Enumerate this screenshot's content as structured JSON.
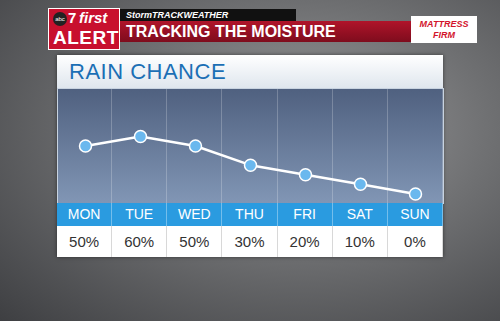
{
  "header": {
    "logo_network": "abc",
    "logo_channel": "7",
    "logo_top": "first",
    "logo_bottom": "ALERT",
    "brand": "StormTRACKWEATHER",
    "headline": "TRACKING THE MOISTURE",
    "sponsor": "MATTRESS FIRM"
  },
  "chart_data": {
    "type": "line",
    "title": "RAIN CHANCE",
    "categories": [
      "MON",
      "TUE",
      "WED",
      "THU",
      "FRI",
      "SAT",
      "SUN"
    ],
    "values": [
      50,
      60,
      50,
      30,
      20,
      10,
      0
    ],
    "value_labels": [
      "50%",
      "60%",
      "50%",
      "30%",
      "20%",
      "10%",
      "0%"
    ],
    "color": "#6ab8ee",
    "ylim": [
      -10,
      110
    ],
    "grid": false,
    "data_labels": true,
    "tick_labels": "x",
    "marker": "circle",
    "line_style": "solid"
  }
}
